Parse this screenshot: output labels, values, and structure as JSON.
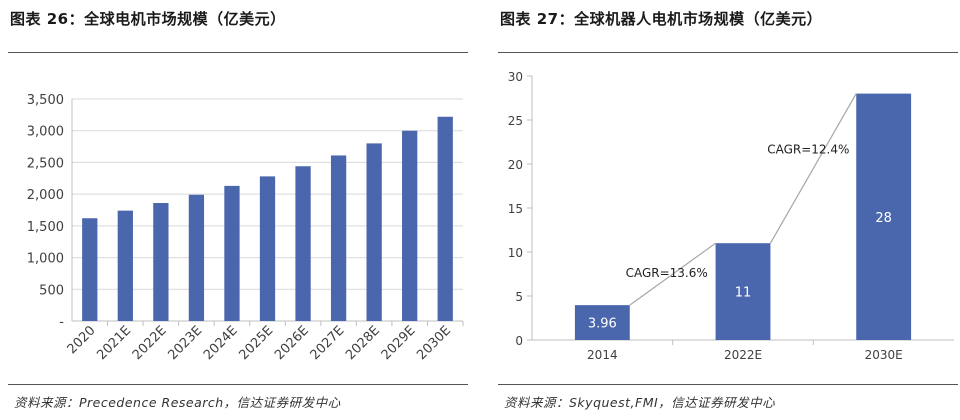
{
  "charts": {
    "left": {
      "title": "图表 26：全球电机市场规模（亿美元）",
      "source": "资料来源：Precedence Research，信达证券研发中心"
    },
    "right": {
      "title": "图表 27：全球机器人电机市场规模（亿美元）",
      "source": "资料来源：Skyquest,FMI，信达证券研发中心"
    }
  },
  "colors": {
    "bar": "#4A66AC",
    "grid": "#D9D9D9",
    "connector": "#A6A6A6"
  },
  "chart_data": [
    {
      "type": "bar",
      "title": "全球电机市场规模（亿美元）",
      "xlabel": "",
      "ylabel": "",
      "categories": [
        "2020",
        "2021E",
        "2022E",
        "2023E",
        "2024E",
        "2025E",
        "2026E",
        "2027E",
        "2028E",
        "2029E",
        "2030E"
      ],
      "values": [
        1620,
        1740,
        1860,
        1990,
        2130,
        2280,
        2440,
        2610,
        2800,
        3000,
        3220
      ],
      "ylim": [
        0,
        3500
      ],
      "yticks": [
        0,
        500,
        1000,
        1500,
        2000,
        2500,
        3000,
        3500
      ],
      "ytick_labels": [
        "-",
        "500",
        "1,000",
        "1,500",
        "2,000",
        "2,500",
        "3,000",
        "3,500"
      ],
      "grid": true,
      "rotated_xticks": true
    },
    {
      "type": "bar",
      "title": "全球机器人电机市场规模（亿美元）",
      "xlabel": "",
      "ylabel": "",
      "categories": [
        "2014",
        "2022E",
        "2030E"
      ],
      "values": [
        3.96,
        11,
        28
      ],
      "value_labels": [
        "3.96",
        "11",
        "28"
      ],
      "ylim": [
        0,
        30
      ],
      "yticks": [
        0,
        5,
        10,
        15,
        20,
        25,
        30
      ],
      "ytick_labels": [
        "0",
        "5",
        "10",
        "15",
        "20",
        "25",
        "30"
      ],
      "grid": false,
      "annotations": [
        {
          "text": "CAGR=13.6%",
          "from": "2014",
          "to": "2022E"
        },
        {
          "text": "CAGR=12.4%",
          "from": "2022E",
          "to": "2030E"
        }
      ]
    }
  ]
}
